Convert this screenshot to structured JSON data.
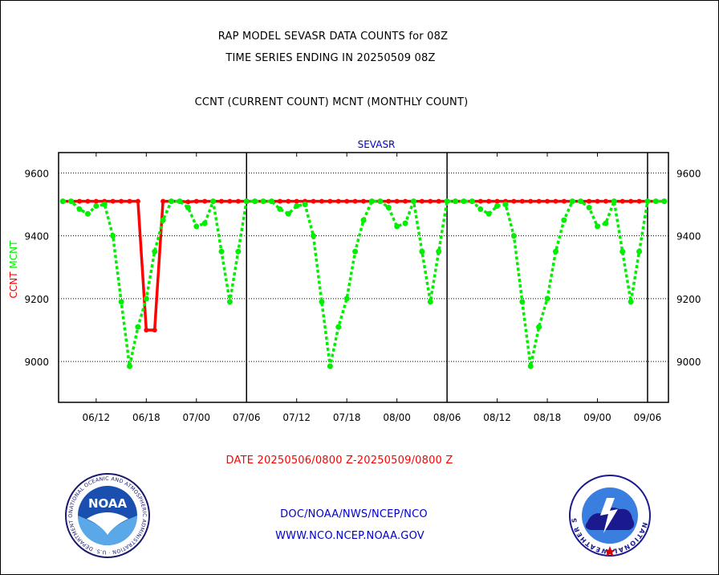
{
  "header": {
    "title_line1": "RAP MODEL SEVASR DATA COUNTS for 08Z",
    "title_line2": "TIME SERIES ENDING IN 20250509 08Z",
    "legend_line": "CCNT (CURRENT COUNT) MCNT (MONTHLY COUNT)"
  },
  "footer": {
    "date_range": "DATE 20250506/0800 Z-20250509/0800 Z",
    "line1": "DOC/NOAA/NWS/NCEP/NCO",
    "line2": "WWW.NCO.NCEP.NOAA.GOV"
  },
  "logos": {
    "noaa_text": "NOAA",
    "noaa_ring": "NATIONAL OCEANIC AND ATMOSPHERIC ADMINISTRATION · U.S. DEPARTMENT OF COMMERCE ·",
    "nws_ring": "NATIONAL WEATHER SERVICE"
  },
  "colors": {
    "ccnt": "#ff0000",
    "mcnt": "#00ee00",
    "title": "#000000",
    "date": "#ff0000",
    "footer": "#0000cc",
    "panel_label": "#0000cc"
  },
  "chart_data": {
    "type": "line",
    "title": "RAP MODEL SEVASR DATA COUNTS for 08Z",
    "subtitle": "TIME SERIES ENDING IN 20250509 08Z",
    "panel_label": "SEVASR",
    "ylabel_parts": [
      "CCNT",
      "MCNT"
    ],
    "ylim": [
      8870,
      9665
    ],
    "yticks": [
      9000,
      9200,
      9400,
      9600
    ],
    "grid": true,
    "x_tick_labels": [
      "06/12",
      "06/18",
      "07/00",
      "07/06",
      "07/12",
      "07/18",
      "08/00",
      "08/06",
      "08/12",
      "08/18",
      "09/00",
      "09/06"
    ],
    "x_tick_hours": [
      4,
      10,
      16,
      22,
      28,
      34,
      40,
      46,
      52,
      58,
      64,
      70
    ],
    "day_separators_hours": [
      22,
      46,
      70
    ],
    "xlim_hours": [
      -0.5,
      72.5
    ],
    "series": [
      {
        "name": "CCNT",
        "x": [
          0,
          1,
          2,
          3,
          4,
          5,
          6,
          7,
          8,
          9,
          10,
          11,
          12,
          13,
          14,
          15,
          16,
          17,
          18,
          19,
          20,
          21,
          22,
          23,
          24,
          25,
          26,
          27,
          28,
          29,
          30,
          31,
          32,
          33,
          34,
          35,
          36,
          37,
          38,
          39,
          40,
          41,
          42,
          43,
          44,
          45,
          46,
          47,
          48,
          49,
          50,
          51,
          52,
          53,
          54,
          55,
          56,
          57,
          58,
          59,
          60,
          61,
          62,
          63,
          64,
          65,
          66,
          67,
          68,
          69,
          70,
          71,
          72
        ],
        "values": [
          9510,
          9510,
          9510,
          9510,
          9510,
          9510,
          9510,
          9510,
          9510,
          9510,
          9100,
          9100,
          9510,
          9510,
          9510,
          9508,
          9510,
          9510,
          9510,
          9510,
          9510,
          9510,
          9510,
          9510,
          9510,
          9510,
          9510,
          9510,
          9510,
          9510,
          9510,
          9510,
          9510,
          9510,
          9510,
          9510,
          9510,
          9510,
          9510,
          9510,
          9510,
          9510,
          9510,
          9510,
          9510,
          9510,
          9510,
          9510,
          9510,
          9510,
          9510,
          9510,
          9510,
          9510,
          9510,
          9510,
          9510,
          9510,
          9510,
          9510,
          9510,
          9510,
          9510,
          9510,
          9510,
          9510,
          9510,
          9510,
          9510,
          9510,
          9510,
          9510,
          9510
        ]
      },
      {
        "name": "MCNT",
        "x": [
          0,
          1,
          2,
          3,
          4,
          5,
          6,
          7,
          8,
          9,
          10,
          11,
          12,
          13,
          14,
          15,
          16,
          17,
          18,
          19,
          20,
          21,
          22,
          23,
          24,
          25,
          26,
          27,
          28,
          29,
          30,
          31,
          32,
          33,
          34,
          35,
          36,
          37,
          38,
          39,
          40,
          41,
          42,
          43,
          44,
          45,
          46,
          47,
          48,
          49,
          50,
          51,
          52,
          53,
          54,
          55,
          56,
          57,
          58,
          59,
          60,
          61,
          62,
          63,
          64,
          65,
          66,
          67,
          68,
          69,
          70,
          71,
          72
        ],
        "values": [
          9510,
          9510,
          9485,
          9470,
          9495,
          9500,
          9400,
          9190,
          8985,
          9110,
          9200,
          9350,
          9450,
          9510,
          9510,
          9490,
          9430,
          9440,
          9510,
          9350,
          9190,
          9350,
          9510,
          9510,
          9510,
          9510,
          9485,
          9470,
          9495,
          9500,
          9400,
          9190,
          8985,
          9110,
          9200,
          9350,
          9450,
          9510,
          9510,
          9490,
          9430,
          9440,
          9510,
          9350,
          9190,
          9350,
          9510,
          9510,
          9510,
          9510,
          9485,
          9470,
          9495,
          9500,
          9400,
          9190,
          8985,
          9110,
          9200,
          9350,
          9450,
          9510,
          9510,
          9490,
          9430,
          9440,
          9510,
          9350,
          9190,
          9350,
          9510,
          9510,
          9510
        ]
      }
    ]
  }
}
